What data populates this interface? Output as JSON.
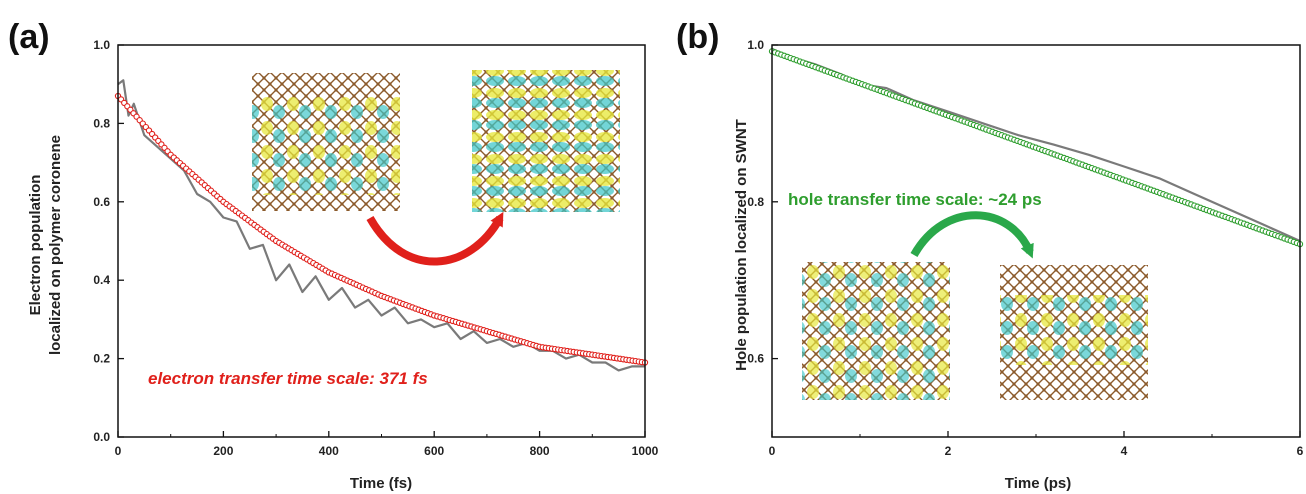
{
  "chart_data": [
    {
      "type": "line",
      "panel_label": "(a)",
      "xlabel": "Time (fs)",
      "ylabel_lines": [
        "Electron population",
        "localized on polymer coronene"
      ],
      "xlim": [
        0,
        1000
      ],
      "ylim": [
        0,
        1.0
      ],
      "xticks": [
        "0",
        "200",
        "400",
        "600",
        "800",
        "1000"
      ],
      "yticks": [
        "0.0",
        "0.2",
        "0.4",
        "0.6",
        "0.8",
        "1.0"
      ],
      "annotation": "electron transfer time scale: 371 fs",
      "colors": {
        "fit": "#e0201b",
        "raw": "#7a7a7a",
        "arrow": "#e0201b"
      },
      "series": [
        {
          "role": "raw",
          "x": [
            0,
            10,
            20,
            30,
            50,
            75,
            100,
            125,
            150,
            175,
            200,
            225,
            250,
            275,
            300,
            325,
            350,
            375,
            400,
            425,
            450,
            475,
            500,
            525,
            550,
            575,
            600,
            625,
            650,
            675,
            700,
            725,
            750,
            775,
            800,
            825,
            850,
            875,
            900,
            925,
            950,
            975,
            1000
          ],
          "y": [
            0.9,
            0.91,
            0.82,
            0.85,
            0.77,
            0.74,
            0.71,
            0.68,
            0.62,
            0.6,
            0.56,
            0.55,
            0.48,
            0.49,
            0.4,
            0.44,
            0.37,
            0.41,
            0.35,
            0.38,
            0.33,
            0.35,
            0.31,
            0.33,
            0.29,
            0.3,
            0.28,
            0.29,
            0.25,
            0.27,
            0.24,
            0.25,
            0.23,
            0.24,
            0.22,
            0.22,
            0.2,
            0.21,
            0.19,
            0.19,
            0.17,
            0.18,
            0.18
          ]
        },
        {
          "role": "fit",
          "x": [
            0,
            100,
            200,
            300,
            400,
            500,
            600,
            700,
            800,
            900,
            1000
          ],
          "y": [
            0.87,
            0.72,
            0.6,
            0.5,
            0.42,
            0.36,
            0.31,
            0.27,
            0.23,
            0.21,
            0.19
          ]
        }
      ]
    },
    {
      "type": "line",
      "panel_label": "(b)",
      "xlabel": "Time (ps)",
      "ylabel_lines": [
        "Hole population localized on SWNT"
      ],
      "xlim": [
        0,
        6
      ],
      "ylim": [
        0.5,
        1.0
      ],
      "xticks": [
        "0",
        "2",
        "4",
        "6"
      ],
      "yticks": [
        "0.6",
        "0.8",
        "1.0"
      ],
      "annotation": "hole transfer time scale: ~24 ps",
      "colors": {
        "fit": "#2e9e2e",
        "raw": "#7a7a7a",
        "arrow": "#2aa84a"
      },
      "series": [
        {
          "role": "raw",
          "x": [
            0,
            0.2,
            0.5,
            0.8,
            1.0,
            1.3,
            1.6,
            2.0,
            2.4,
            2.8,
            3.2,
            3.6,
            4.0,
            4.4,
            4.8,
            5.2,
            5.6,
            6.0
          ],
          "y": [
            0.995,
            0.985,
            0.975,
            0.962,
            0.95,
            0.945,
            0.93,
            0.915,
            0.9,
            0.885,
            0.873,
            0.86,
            0.845,
            0.83,
            0.81,
            0.79,
            0.77,
            0.75
          ]
        },
        {
          "role": "fit",
          "x": [
            0,
            1,
            2,
            3,
            4,
            5,
            6
          ],
          "y": [
            0.992,
            0.951,
            0.91,
            0.869,
            0.828,
            0.787,
            0.746
          ]
        }
      ]
    }
  ],
  "icons": [
    "nanotube-orbital-image",
    "curved-arrow-icon"
  ]
}
